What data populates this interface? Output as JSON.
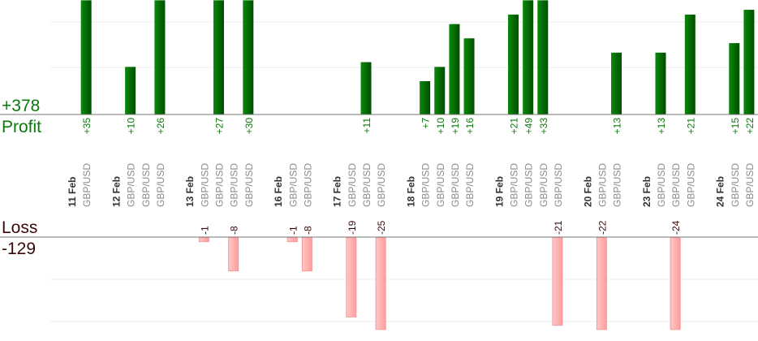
{
  "summary": {
    "profit_total": "+378",
    "profit_label": "Profit",
    "loss_label": "Loss",
    "loss_total": "-129"
  },
  "colors": {
    "profit": "#006400",
    "profit_text": "#0a7a0a",
    "loss_fill": "#ffb3b3",
    "loss_stroke": "#f59a9a",
    "loss_text": "#3a0a0a",
    "pair_text": "#8a8a8a",
    "date_text": "#333333"
  },
  "chart_data": {
    "type": "bar",
    "title": "",
    "pair": "GBP/USD",
    "profit_ylim": [
      0,
      24
    ],
    "loss_ylim": [
      -22,
      0
    ],
    "grid": true,
    "groups": [
      {
        "date": "11 Feb",
        "trades": [
          35
        ]
      },
      {
        "date": "12 Feb",
        "trades": [
          10,
          null,
          26
        ]
      },
      {
        "date": "13 Feb",
        "trades": [
          -1,
          27,
          -8,
          30
        ]
      },
      {
        "date": "16 Feb",
        "trades": [
          -1,
          -8
        ]
      },
      {
        "date": "17 Feb",
        "trades": [
          -19,
          11,
          -25
        ]
      },
      {
        "date": "18 Feb",
        "trades": [
          7,
          10,
          19,
          16
        ]
      },
      {
        "date": "19 Feb",
        "trades": [
          21,
          49,
          33,
          -21
        ]
      },
      {
        "date": "20 Feb",
        "trades": [
          -22,
          13
        ]
      },
      {
        "date": "23 Feb",
        "trades": [
          13,
          -24,
          21
        ]
      },
      {
        "date": "24 Feb",
        "trades": [
          15,
          22
        ]
      }
    ]
  }
}
